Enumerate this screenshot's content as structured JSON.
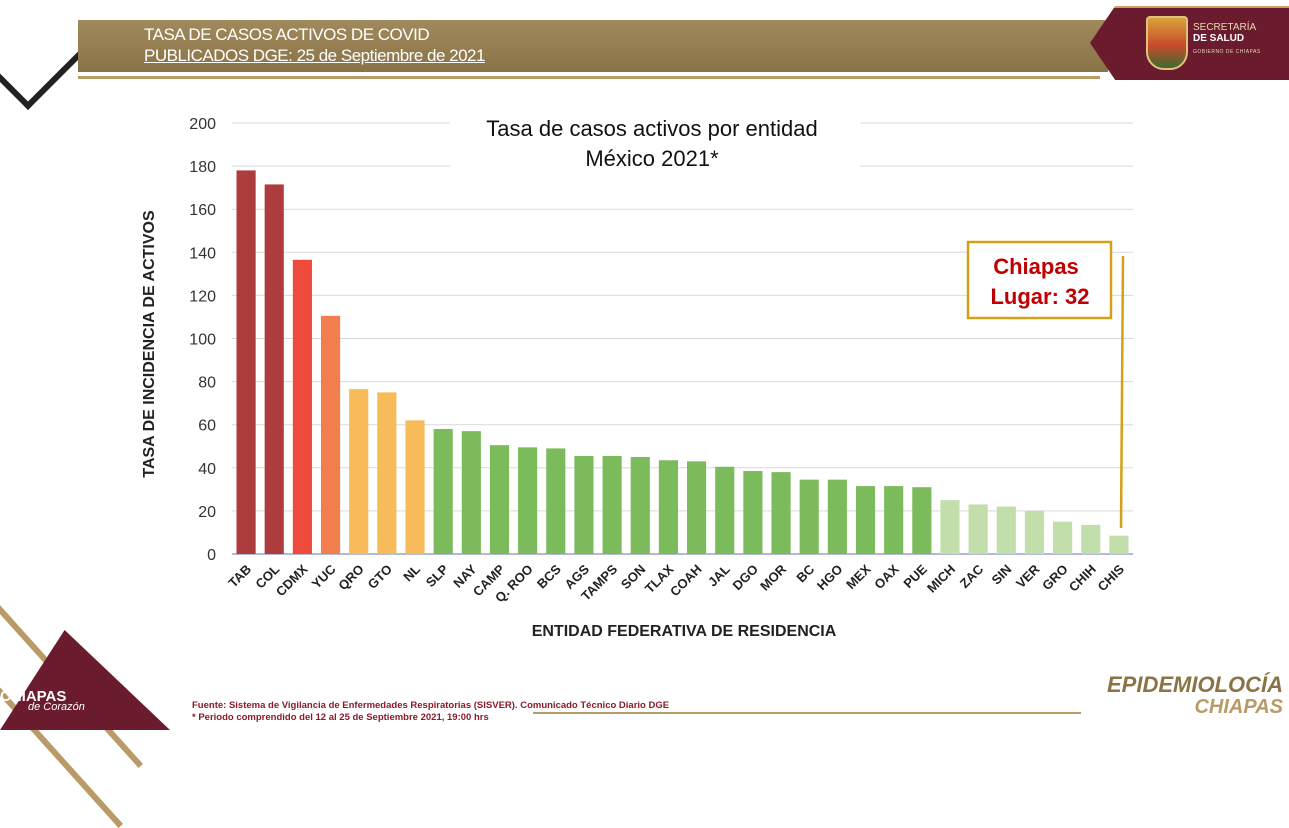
{
  "header": {
    "title": "TASA DE CASOS ACTIVOS DE COVID",
    "subtitle": "PUBLICADOS DGE: 25 de Septiembre de 2021"
  },
  "logo": {
    "line1": "SECRETARÍA",
    "line2": "DE SALUD",
    "line3": "GOBIERNO DE CHIAPAS",
    "icon": "coat-of-arms-icon"
  },
  "colors": {
    "header_gold": "#a0895c",
    "brand_maroon": "#6b1b2e",
    "gridline": "#d9d9d9",
    "chiapas_red": "#c00000",
    "highlight_border": "#d4a017"
  },
  "chart_data": {
    "type": "bar",
    "title": "Tasa de casos activos por entidad",
    "subtitle": "México 2021*",
    "xlabel": "ENTIDAD FEDERATIVA DE RESIDENCIA",
    "ylabel": "TASA DE INCIDENCIA DE ACTIVOS",
    "ylim": [
      0,
      200
    ],
    "yticks": [
      0,
      20,
      40,
      60,
      80,
      100,
      120,
      140,
      160,
      180,
      200
    ],
    "grid": true,
    "categories": [
      "TAB",
      "COL",
      "CDMX",
      "YUC",
      "QRO",
      "GTO",
      "NL",
      "SLP",
      "NAY",
      "CAMP",
      "Q. ROO",
      "BCS",
      "AGS",
      "TAMPS",
      "SON",
      "TLAX",
      "COAH",
      "JAL",
      "DGO",
      "MOR",
      "BC",
      "HGO",
      "MEX",
      "OAX",
      "PUE",
      "MICH",
      "ZAC",
      "SIN",
      "VER",
      "GRO",
      "CHIH",
      "CHIS"
    ],
    "values": [
      178,
      171.5,
      136.5,
      110.5,
      76.5,
      75,
      62,
      58,
      57,
      50.5,
      49.5,
      49,
      45.5,
      45.5,
      45,
      43.5,
      43,
      40.5,
      38.5,
      38,
      34.5,
      34.5,
      31.5,
      31.5,
      31,
      25,
      23,
      22,
      20,
      15,
      13.5,
      8.5
    ],
    "bar_colors": [
      "#ae3c3c",
      "#ae3c3c",
      "#ef4b3c",
      "#f17e4c",
      "#f8bb5a",
      "#f8bb5a",
      "#f8bb5a",
      "#7cbb5c",
      "#7cbb5c",
      "#7cbb5c",
      "#7cbb5c",
      "#7cbb5c",
      "#7cbb5c",
      "#7cbb5c",
      "#7cbb5c",
      "#7cbb5c",
      "#7cbb5c",
      "#7cbb5c",
      "#7cbb5c",
      "#7cbb5c",
      "#7cbb5c",
      "#7cbb5c",
      "#7cbb5c",
      "#7cbb5c",
      "#7cbb5c",
      "#c1deab",
      "#c1deab",
      "#c1deab",
      "#c1deab",
      "#c1deab",
      "#c1deab",
      "#c1deab"
    ],
    "annotation": {
      "line1": "Chiapas",
      "line2": "Lugar: 32"
    }
  },
  "footer": {
    "source": "Fuente: Sistema de Vigilancia de Enfermedades Respiratorias (SISVER). Comunicado Técnico Diario DGE",
    "period": "* Periodo comprendido del 12 al 25 de Septiembre 2021, 19:00 hrs"
  },
  "branding": {
    "chiapas": "CHIAPAS",
    "chiapas_sub": "de Corazón",
    "epi_line1": "EPIDEMIOLOCÍA",
    "epi_line2": "CHIAPAS"
  }
}
